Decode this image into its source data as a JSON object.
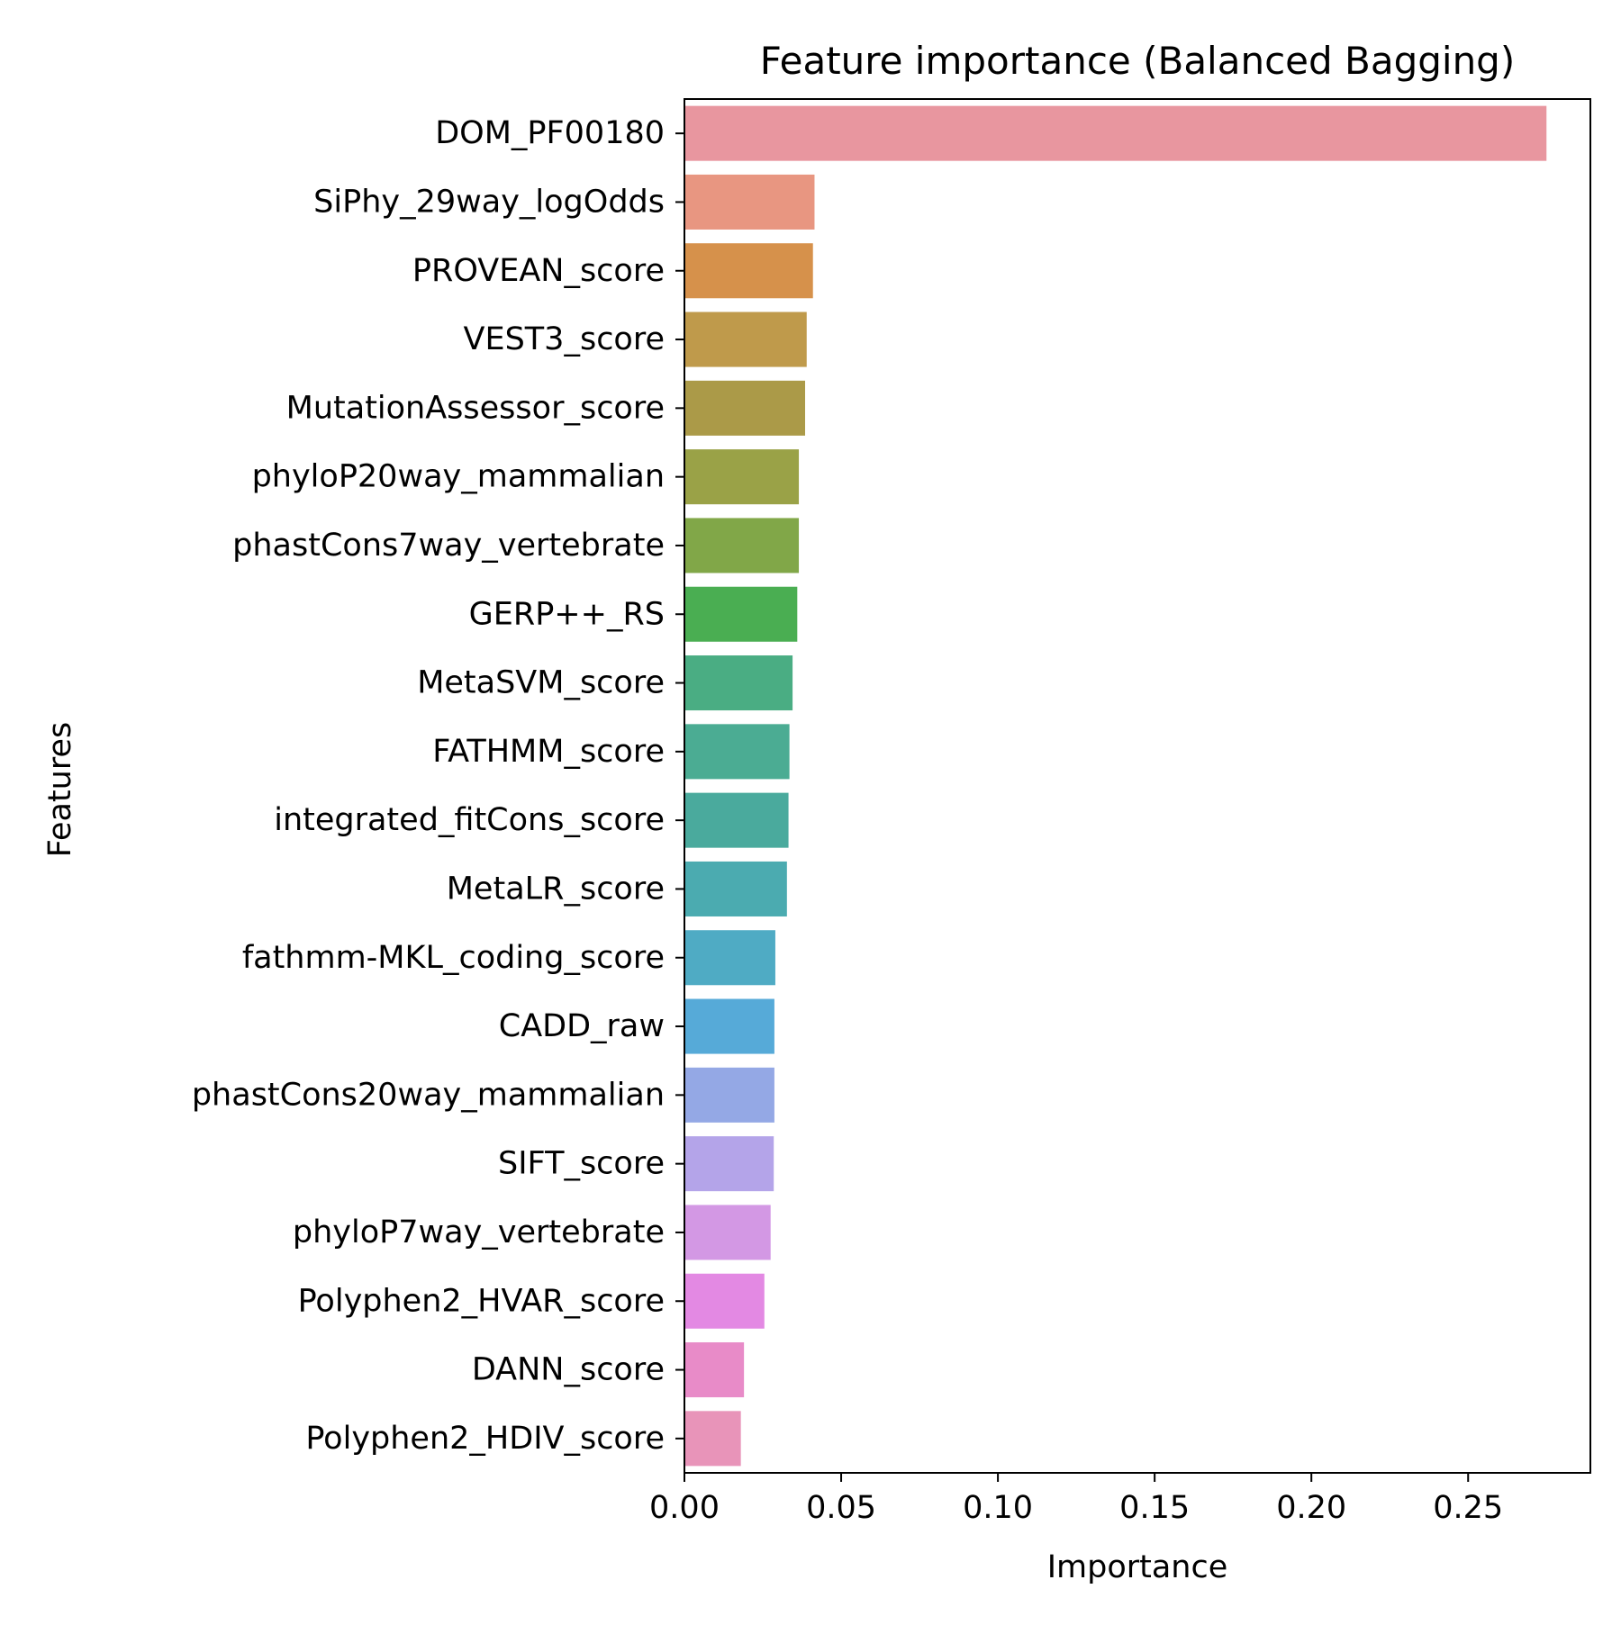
{
  "chart_data": {
    "type": "bar",
    "orientation": "horizontal",
    "title": "Feature importance (Balanced Bagging)",
    "xlabel": "Importance",
    "ylabel": "Features",
    "xlim": [
      0,
      0.289
    ],
    "xticks": [
      0.0,
      0.05,
      0.1,
      0.15,
      0.2,
      0.25
    ],
    "xtick_labels": [
      "0.00",
      "0.05",
      "0.10",
      "0.15",
      "0.20",
      "0.25"
    ],
    "grid": false,
    "legend": "none",
    "categories": [
      "DOM_PF00180",
      "SiPhy_29way_logOdds",
      "PROVEAN_score",
      "VEST3_score",
      "MutationAssessor_score",
      "phyloP20way_mammalian",
      "phastCons7way_vertebrate",
      "GERP++_RS",
      "MetaSVM_score",
      "FATHMM_score",
      "integrated_fitCons_score",
      "MetaLR_score",
      "fathmm-MKL_coding_score",
      "CADD_raw",
      "phastCons20way_mammalian",
      "SIFT_score",
      "phyloP7way_vertebrate",
      "Polyphen2_HVAR_score",
      "DANN_score",
      "Polyphen2_HDIV_score"
    ],
    "values": [
      0.275,
      0.0415,
      0.041,
      0.039,
      0.0385,
      0.0365,
      0.0365,
      0.036,
      0.0345,
      0.0335,
      0.0332,
      0.0327,
      0.029,
      0.0287,
      0.0287,
      0.0285,
      0.0275,
      0.0255,
      0.019,
      0.018
    ],
    "colors": [
      "#e8969f",
      "#e89681",
      "#d6914b",
      "#bf9a4b",
      "#ab9a48",
      "#9aa247",
      "#81a748",
      "#4aae52",
      "#4aad83",
      "#4bac93",
      "#4aaa9d",
      "#4babb0",
      "#4fabc4",
      "#56aad8",
      "#94a8e5",
      "#b4a4e9",
      "#d398e4",
      "#e389e3",
      "#e88bc8",
      "#e894b9"
    ]
  }
}
